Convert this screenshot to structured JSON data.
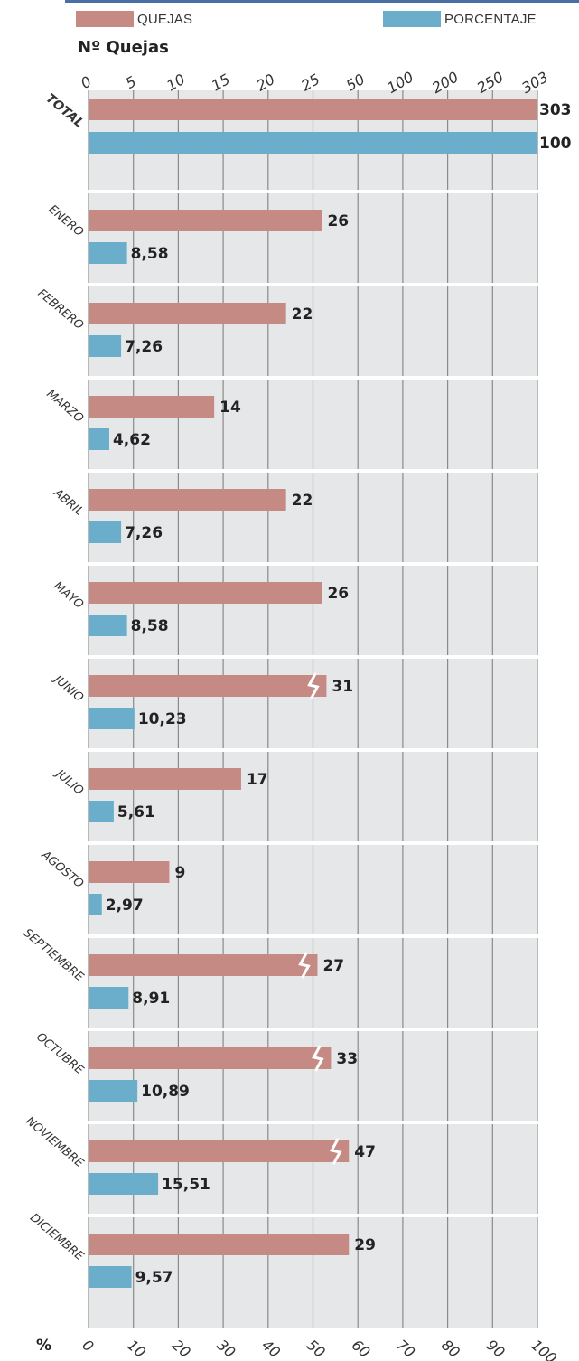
{
  "legend": {
    "quejas": {
      "label": "QUEJAS",
      "color": "#c68a85"
    },
    "porcentaje": {
      "label": "PORCENTAJE",
      "color": "#6aaecb"
    }
  },
  "top_axis_title": "Nº Quejas",
  "bottom_axis_label": "%",
  "colors": {
    "plot_bg": "#e6e7e8",
    "gridline": "#8a8a8a",
    "separator": "#ffffff"
  },
  "chart_data": {
    "type": "bar",
    "orientation": "horizontal",
    "categories": [
      "TOTAL",
      "ENERO",
      "FEBRERO",
      "MARZO",
      "ABRIL",
      "MAYO",
      "JUNIO",
      "JULIO",
      "AGOSTO",
      "SEPTIEMBRE",
      "OCTUBRE",
      "NOVIEMBRE",
      "DICIEMBRE"
    ],
    "series": [
      {
        "name": "QUEJAS",
        "values": [
          303,
          26,
          22,
          14,
          22,
          26,
          31,
          17,
          9,
          27,
          33,
          47,
          29
        ],
        "labels": [
          "303",
          "26",
          "22",
          "14",
          "22",
          "26",
          "31",
          "17",
          "9",
          "27",
          "33",
          "47",
          "29"
        ]
      },
      {
        "name": "PORCENTAJE",
        "values": [
          100,
          8.58,
          7.26,
          4.62,
          7.26,
          8.58,
          10.23,
          5.61,
          2.97,
          8.91,
          10.89,
          15.51,
          9.57
        ],
        "labels": [
          "100",
          "8,58",
          "7,26",
          "4,62",
          "7,26",
          "8,58",
          "10,23",
          "5,61",
          "2,97",
          "8,91",
          "10,89",
          "15,51",
          "9,57"
        ]
      }
    ],
    "axis_breaks": [
      false,
      false,
      false,
      false,
      false,
      false,
      true,
      false,
      false,
      true,
      true,
      true,
      false
    ],
    "top_axis": {
      "label": "Nº Quejas",
      "ticks": [
        "0",
        "5",
        "10",
        "15",
        "20",
        "25",
        "50",
        "100",
        "200",
        "250",
        "303"
      ]
    },
    "bottom_axis": {
      "label": "%",
      "ticks": [
        "0",
        "10",
        "20",
        "30",
        "40",
        "50",
        "60",
        "70",
        "80",
        "90",
        "100"
      ],
      "range": [
        0,
        100
      ]
    },
    "grid": true
  }
}
